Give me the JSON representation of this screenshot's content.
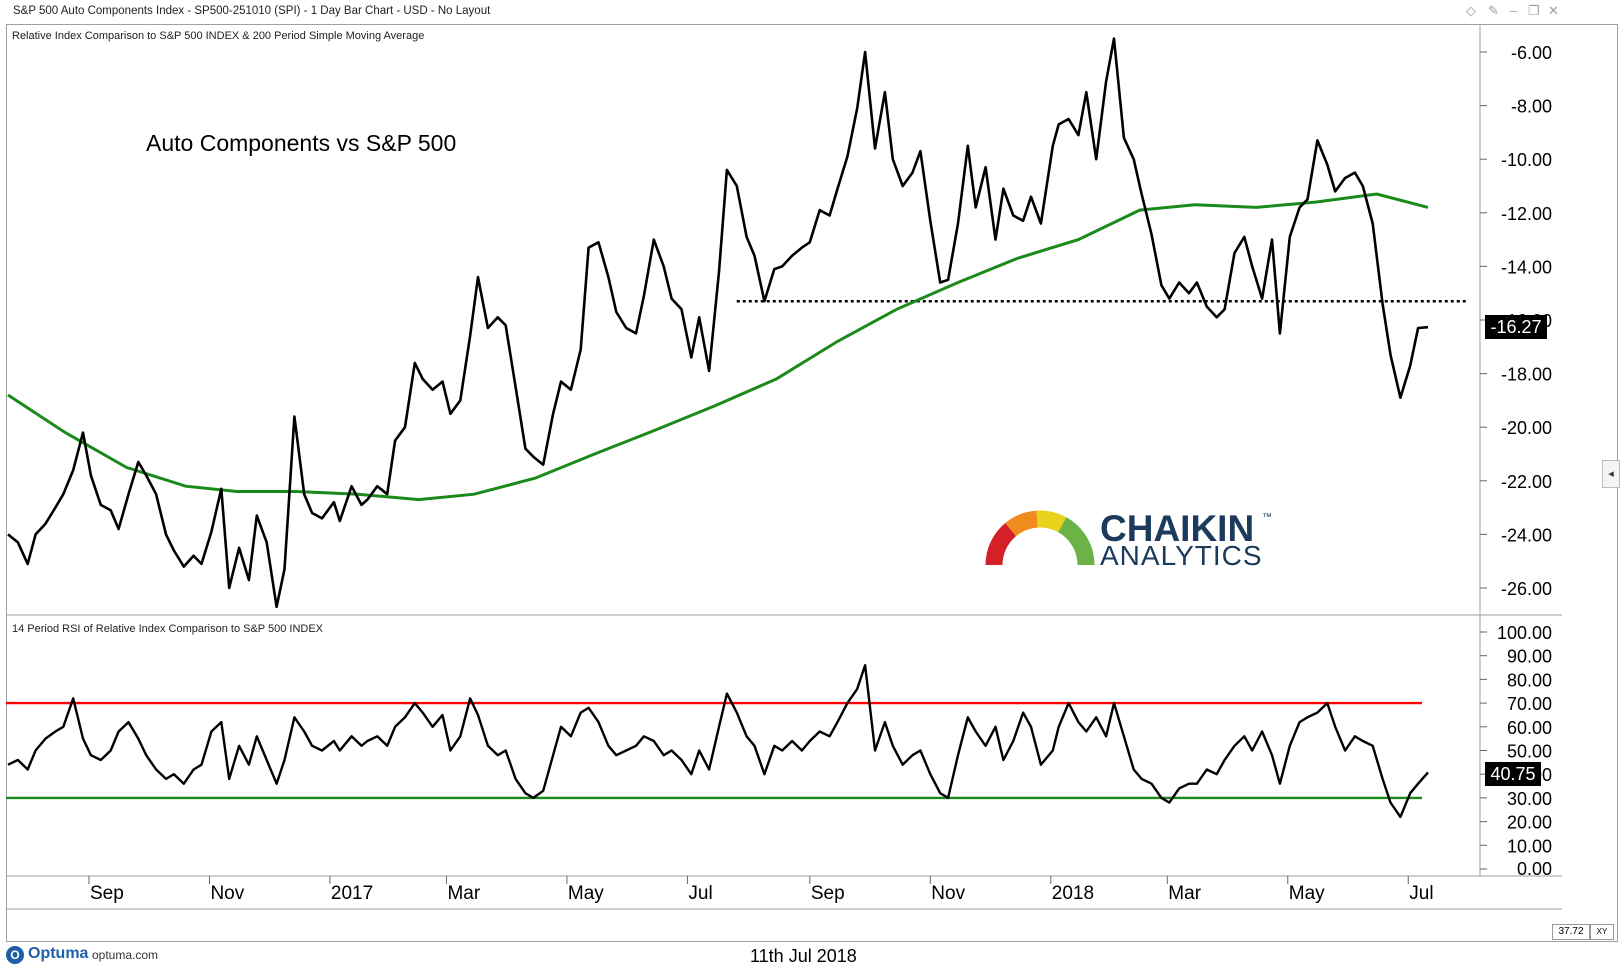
{
  "window": {
    "title": "S&P 500 Auto Components Index  - SP500-251010 (SPI) - 1 Day Bar Chart - USD - No Layout"
  },
  "top_panel": {
    "label": "Relative Index Comparison to S&P 500 INDEX & 200 Period Simple Moving Average",
    "annotation": "Auto Components vs S&P 500",
    "last_value_badge": "-16.27"
  },
  "bottom_panel": {
    "label": "14 Period RSI of Relative Index Comparison to S&P 500 INDEX",
    "last_value_badge": "40.75"
  },
  "logo": {
    "line1": "CHAIKIN",
    "tm": "™",
    "line2": "ANALYTICS"
  },
  "footer": {
    "brand": "Optuma",
    "url": "optuma.com",
    "date": "11th Jul 2018",
    "zoom": "37.72",
    "xy_label": "XY"
  },
  "colors": {
    "price_line": "#000000",
    "sma_line": "#1a8a1a",
    "overbought_line": "#ff0000",
    "oversold_line": "#1a8a1a",
    "support_line": "#000000"
  },
  "chart_data": [
    {
      "type": "line",
      "title": "Relative Index Comparison to S&P 500 INDEX & 200 Period Simple Moving Average",
      "ylim": [
        -27,
        -5.5
      ],
      "yticks": [
        -6,
        -8,
        -10,
        -12,
        -14,
        -16,
        -18,
        -20,
        -22,
        -24,
        -26
      ],
      "ytick_labels": [
        "-6.00",
        "-8.00",
        "-10.00",
        "-12.00",
        "-14.00",
        "-16.00",
        "-18.00",
        "-20.00",
        "-22.00",
        "-24.00",
        "-26.00"
      ],
      "x_labels": [
        "Sep",
        "Nov",
        "2017",
        "Mar",
        "May",
        "Jul",
        "Sep",
        "Nov",
        "2018",
        "Mar",
        "May",
        "Jul"
      ],
      "xlim": [
        "2016-07-22",
        "2018-07-11"
      ],
      "grid": false,
      "series": [
        {
          "x": [
            "2016-07-22",
            "2016-07-27",
            "2016-08-01",
            "2016-08-05",
            "2016-08-10",
            "2016-08-15",
            "2016-08-19",
            "2016-08-24",
            "2016-08-29",
            "2016-09-02",
            "2016-09-07",
            "2016-09-12",
            "2016-09-16",
            "2016-09-21",
            "2016-09-26",
            "2016-09-30",
            "2016-10-05",
            "2016-10-10",
            "2016-10-14",
            "2016-10-19",
            "2016-10-24",
            "2016-10-28",
            "2016-11-02",
            "2016-11-07",
            "2016-11-11",
            "2016-11-16",
            "2016-11-21",
            "2016-11-25",
            "2016-11-30",
            "2016-12-05",
            "2016-12-09",
            "2016-12-14",
            "2016-12-19",
            "2016-12-23",
            "2016-12-28",
            "2017-01-03",
            "2017-01-06",
            "2017-01-12",
            "2017-01-17",
            "2017-01-20",
            "2017-01-25",
            "2017-01-30",
            "2017-02-03",
            "2017-02-08",
            "2017-02-13",
            "2017-02-17",
            "2017-02-22",
            "2017-02-27",
            "2017-03-03",
            "2017-03-08",
            "2017-03-13",
            "2017-03-17",
            "2017-03-22",
            "2017-03-27",
            "2017-03-31",
            "2017-04-05",
            "2017-04-10",
            "2017-04-14",
            "2017-04-19",
            "2017-04-24",
            "2017-04-28",
            "2017-05-03",
            "2017-05-08",
            "2017-05-12",
            "2017-05-17",
            "2017-05-22",
            "2017-05-26",
            "2017-05-31",
            "2017-06-05",
            "2017-06-09",
            "2017-06-14",
            "2017-06-19",
            "2017-06-23",
            "2017-06-28",
            "2017-07-03",
            "2017-07-07",
            "2017-07-12",
            "2017-07-17",
            "2017-07-21",
            "2017-07-26",
            "2017-07-31",
            "2017-08-04",
            "2017-08-09",
            "2017-08-14",
            "2017-08-18",
            "2017-08-23",
            "2017-08-28",
            "2017-09-01",
            "2017-09-06",
            "2017-09-11",
            "2017-09-15",
            "2017-09-20",
            "2017-09-25",
            "2017-09-29",
            "2017-10-04",
            "2017-10-09",
            "2017-10-13",
            "2017-10-18",
            "2017-10-23",
            "2017-10-27",
            "2017-11-01",
            "2017-11-06",
            "2017-11-10",
            "2017-11-15",
            "2017-11-20",
            "2017-11-24",
            "2017-11-29",
            "2017-12-04",
            "2017-12-08",
            "2017-12-13",
            "2017-12-18",
            "2017-12-22",
            "2017-12-27",
            "2018-01-02",
            "2018-01-05",
            "2018-01-10",
            "2018-01-15",
            "2018-01-19",
            "2018-01-24",
            "2018-01-29",
            "2018-02-02",
            "2018-02-07",
            "2018-02-12",
            "2018-02-16",
            "2018-02-21",
            "2018-02-26",
            "2018-03-02",
            "2018-03-07",
            "2018-03-12",
            "2018-03-16",
            "2018-03-21",
            "2018-03-26",
            "2018-03-30",
            "2018-04-04",
            "2018-04-09",
            "2018-04-13",
            "2018-04-18",
            "2018-04-23",
            "2018-04-27",
            "2018-05-02",
            "2018-05-07",
            "2018-05-11",
            "2018-05-16",
            "2018-05-21",
            "2018-05-25",
            "2018-05-30",
            "2018-06-04",
            "2018-06-08",
            "2018-06-13",
            "2018-06-18",
            "2018-06-22",
            "2018-06-27",
            "2018-07-02",
            "2018-07-06",
            "2018-07-11"
          ],
          "values": [
            -24.0,
            -24.3,
            -25.1,
            -24.0,
            -23.6,
            -23.0,
            -22.5,
            -21.6,
            -20.2,
            -21.8,
            -22.9,
            -23.1,
            -23.8,
            -22.5,
            -21.3,
            -21.8,
            -22.5,
            -24.0,
            -24.6,
            -25.2,
            -24.8,
            -25.1,
            -23.9,
            -22.3,
            -26.0,
            -24.5,
            -25.7,
            -23.3,
            -24.3,
            -26.7,
            -25.3,
            -19.6,
            -22.5,
            -23.2,
            -23.4,
            -22.8,
            -23.5,
            -22.2,
            -22.9,
            -22.7,
            -22.2,
            -22.5,
            -20.5,
            -20.0,
            -17.6,
            -18.2,
            -18.6,
            -18.3,
            -19.5,
            -19.0,
            -16.6,
            -14.4,
            -16.3,
            -15.9,
            -16.2,
            -18.5,
            -20.8,
            -21.1,
            -21.4,
            -19.5,
            -18.3,
            -18.6,
            -17.1,
            -13.3,
            -13.1,
            -14.4,
            -15.7,
            -16.3,
            -16.5,
            -15.1,
            -13.0,
            -14.0,
            -15.2,
            -15.6,
            -17.4,
            -15.9,
            -17.9,
            -14.2,
            -10.4,
            -11.0,
            -12.9,
            -13.6,
            -15.3,
            -14.1,
            -14.0,
            -13.6,
            -13.3,
            -13.1,
            -11.9,
            -12.1,
            -11.1,
            -9.9,
            -8.1,
            -6.0,
            -9.6,
            -7.5,
            -10.0,
            -11.0,
            -10.5,
            -9.7,
            -12.3,
            -14.6,
            -14.5,
            -12.4,
            -9.5,
            -11.8,
            -10.3,
            -13.0,
            -11.1,
            -12.1,
            -12.3,
            -11.4,
            -12.4,
            -9.5,
            -8.7,
            -8.5,
            -9.1,
            -7.5,
            -10.0,
            -7.1,
            -5.5,
            -9.2,
            -10.0,
            -11.3,
            -12.8,
            -14.7,
            -15.2,
            -14.6,
            -15.0,
            -14.6,
            -15.5,
            -15.9,
            -15.6,
            -13.5,
            -12.9,
            -14.0,
            -15.2,
            -13.0,
            -16.5,
            -12.9,
            -11.8,
            -11.5,
            -9.3,
            -10.2,
            -11.2,
            -10.7,
            -10.5,
            -11.0,
            -12.4,
            -15.4,
            -17.3,
            -18.9,
            -17.7,
            -16.3,
            -16.27
          ]
        },
        {
          "name": "200 Period Simple Moving Average",
          "x": [
            "2016-07-22",
            "2016-08-20",
            "2016-09-20",
            "2016-10-20",
            "2016-11-15",
            "2016-12-15",
            "2017-01-15",
            "2017-02-15",
            "2017-03-15",
            "2017-04-15",
            "2017-05-15",
            "2017-06-15",
            "2017-07-15",
            "2017-08-15",
            "2017-09-15",
            "2017-10-15",
            "2017-11-15",
            "2017-12-15",
            "2018-01-15",
            "2018-02-15",
            "2018-03-15",
            "2018-04-15",
            "2018-05-15",
            "2018-06-15",
            "2018-07-11"
          ],
          "values": [
            -18.8,
            -20.2,
            -21.5,
            -22.2,
            -22.4,
            -22.4,
            -22.5,
            -22.7,
            -22.5,
            -21.9,
            -21.0,
            -20.1,
            -19.2,
            -18.2,
            -16.8,
            -15.6,
            -14.6,
            -13.7,
            -13.0,
            -11.9,
            -11.7,
            -11.8,
            -11.6,
            -11.3,
            -11.8
          ]
        }
      ],
      "support_level": -15.3,
      "support_range": [
        "2017-07-26",
        "2018-07-11"
      ]
    },
    {
      "type": "line",
      "title": "14 Period RSI of Relative Index Comparison to S&P 500 INDEX",
      "ylim": [
        0,
        102
      ],
      "yticks": [
        0,
        10,
        20,
        30,
        40,
        50,
        60,
        70,
        80,
        90,
        100
      ],
      "ytick_labels": [
        "0.00",
        "10.00",
        "20.00",
        "30.00",
        "40.00",
        "50.00",
        "60.00",
        "70.00",
        "80.00",
        "90.00",
        "100.00"
      ],
      "overbought": 70,
      "oversold": 30,
      "grid": false,
      "series": [
        {
          "x": [
            "2016-07-22",
            "2016-07-27",
            "2016-08-01",
            "2016-08-05",
            "2016-08-10",
            "2016-08-15",
            "2016-08-19",
            "2016-08-24",
            "2016-08-29",
            "2016-09-02",
            "2016-09-07",
            "2016-09-12",
            "2016-09-16",
            "2016-09-21",
            "2016-09-26",
            "2016-09-30",
            "2016-10-05",
            "2016-10-10",
            "2016-10-14",
            "2016-10-19",
            "2016-10-24",
            "2016-10-28",
            "2016-11-02",
            "2016-11-07",
            "2016-11-11",
            "2016-11-16",
            "2016-11-21",
            "2016-11-25",
            "2016-11-30",
            "2016-12-05",
            "2016-12-09",
            "2016-12-14",
            "2016-12-19",
            "2016-12-23",
            "2016-12-28",
            "2017-01-03",
            "2017-01-06",
            "2017-01-12",
            "2017-01-17",
            "2017-01-20",
            "2017-01-25",
            "2017-01-30",
            "2017-02-03",
            "2017-02-08",
            "2017-02-13",
            "2017-02-17",
            "2017-02-22",
            "2017-02-27",
            "2017-03-03",
            "2017-03-08",
            "2017-03-13",
            "2017-03-17",
            "2017-03-22",
            "2017-03-27",
            "2017-03-31",
            "2017-04-05",
            "2017-04-10",
            "2017-04-14",
            "2017-04-19",
            "2017-04-24",
            "2017-04-28",
            "2017-05-03",
            "2017-05-08",
            "2017-05-12",
            "2017-05-17",
            "2017-05-22",
            "2017-05-26",
            "2017-05-31",
            "2017-06-05",
            "2017-06-09",
            "2017-06-14",
            "2017-06-19",
            "2017-06-23",
            "2017-06-28",
            "2017-07-03",
            "2017-07-07",
            "2017-07-12",
            "2017-07-17",
            "2017-07-21",
            "2017-07-26",
            "2017-07-31",
            "2017-08-04",
            "2017-08-09",
            "2017-08-14",
            "2017-08-18",
            "2017-08-23",
            "2017-08-28",
            "2017-09-01",
            "2017-09-06",
            "2017-09-11",
            "2017-09-15",
            "2017-09-20",
            "2017-09-25",
            "2017-09-29",
            "2017-10-04",
            "2017-10-09",
            "2017-10-13",
            "2017-10-18",
            "2017-10-23",
            "2017-10-27",
            "2017-11-01",
            "2017-11-06",
            "2017-11-10",
            "2017-11-15",
            "2017-11-20",
            "2017-11-24",
            "2017-11-29",
            "2017-12-04",
            "2017-12-08",
            "2017-12-13",
            "2017-12-18",
            "2017-12-22",
            "2017-12-27",
            "2018-01-02",
            "2018-01-05",
            "2018-01-10",
            "2018-01-15",
            "2018-01-19",
            "2018-01-24",
            "2018-01-29",
            "2018-02-02",
            "2018-02-07",
            "2018-02-12",
            "2018-02-16",
            "2018-02-21",
            "2018-02-26",
            "2018-03-02",
            "2018-03-07",
            "2018-03-12",
            "2018-03-16",
            "2018-03-21",
            "2018-03-26",
            "2018-03-30",
            "2018-04-04",
            "2018-04-09",
            "2018-04-13",
            "2018-04-18",
            "2018-04-23",
            "2018-04-27",
            "2018-05-02",
            "2018-05-07",
            "2018-05-11",
            "2018-05-16",
            "2018-05-21",
            "2018-05-25",
            "2018-05-30",
            "2018-06-04",
            "2018-06-08",
            "2018-06-13",
            "2018-06-18",
            "2018-06-22",
            "2018-06-27",
            "2018-07-02",
            "2018-07-06",
            "2018-07-11"
          ],
          "values": [
            44,
            46,
            42,
            50,
            55,
            58,
            60,
            72,
            55,
            48,
            46,
            50,
            58,
            62,
            55,
            48,
            42,
            38,
            40,
            36,
            42,
            44,
            58,
            62,
            38,
            52,
            44,
            56,
            46,
            36,
            46,
            64,
            58,
            52,
            50,
            54,
            50,
            56,
            52,
            54,
            56,
            52,
            60,
            64,
            70,
            66,
            60,
            65,
            50,
            56,
            72,
            65,
            52,
            48,
            50,
            38,
            32,
            30,
            33,
            48,
            60,
            56,
            66,
            68,
            62,
            52,
            48,
            50,
            52,
            56,
            54,
            48,
            50,
            46,
            40,
            50,
            42,
            60,
            74,
            66,
            56,
            52,
            40,
            52,
            50,
            54,
            50,
            54,
            58,
            56,
            62,
            70,
            76,
            86,
            50,
            62,
            52,
            44,
            48,
            50,
            40,
            32,
            30,
            48,
            64,
            58,
            52,
            60,
            46,
            54,
            66,
            60,
            44,
            50,
            60,
            70,
            62,
            58,
            64,
            56,
            70,
            56,
            42,
            38,
            36,
            30,
            28,
            34,
            36,
            36,
            42,
            40,
            46,
            52,
            56,
            50,
            58,
            48,
            36,
            52,
            62,
            64,
            66,
            70,
            60,
            50,
            56,
            54,
            52,
            38,
            28,
            22,
            32,
            36,
            40.75
          ]
        }
      ]
    }
  ]
}
